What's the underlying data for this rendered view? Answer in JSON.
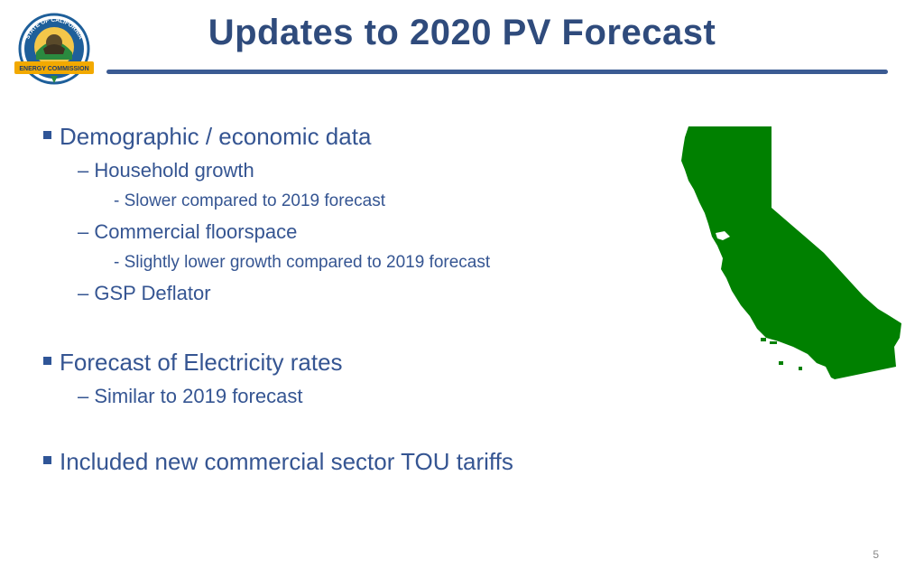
{
  "logo": {
    "top_text": "STATE OF CALIFORNIA",
    "bottom_text": "ENERGY COMMISSION",
    "colors": {
      "ring": "#1e5f9a",
      "ribbon": "#f2a900",
      "ribbon_text": "#1e3a6b"
    }
  },
  "header": {
    "title": "Updates to 2020 PV Forecast",
    "title_color": "#2f4b7c",
    "rule_color": "#3b5b93"
  },
  "bullets": {
    "b1": {
      "label": "Demographic / economic data",
      "sub1": {
        "label": "– Household growth",
        "detail": "-  Slower compared to 2019 forecast"
      },
      "sub2": {
        "label": "– Commercial floorspace",
        "detail": "-  Slightly lower growth compared to 2019 forecast"
      },
      "sub3": {
        "label": "– GSP Deflator"
      }
    },
    "b2": {
      "label": "Forecast of Electricity rates",
      "sub1": {
        "label": "– Similar to 2019 forecast"
      }
    },
    "b3": {
      "label": "Included new commercial sector TOU tariffs"
    }
  },
  "map": {
    "region": "california-map",
    "fill_color": "#008000"
  },
  "footer": {
    "page_number": "5"
  }
}
